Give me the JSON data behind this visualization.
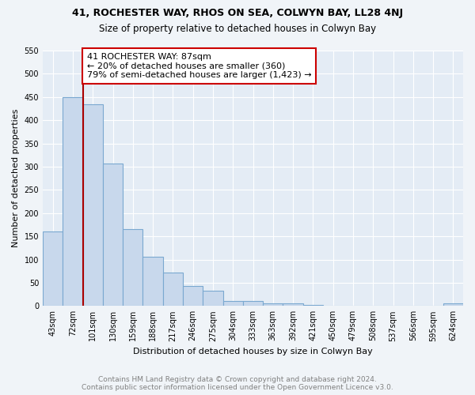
{
  "title1": "41, ROCHESTER WAY, RHOS ON SEA, COLWYN BAY, LL28 4NJ",
  "title2": "Size of property relative to detached houses in Colwyn Bay",
  "xlabel": "Distribution of detached houses by size in Colwyn Bay",
  "ylabel": "Number of detached properties",
  "categories": [
    "43sqm",
    "72sqm",
    "101sqm",
    "130sqm",
    "159sqm",
    "188sqm",
    "217sqm",
    "246sqm",
    "275sqm",
    "304sqm",
    "333sqm",
    "363sqm",
    "392sqm",
    "421sqm",
    "450sqm",
    "479sqm",
    "508sqm",
    "537sqm",
    "566sqm",
    "595sqm",
    "624sqm"
  ],
  "values": [
    160,
    450,
    435,
    307,
    165,
    106,
    72,
    43,
    33,
    10,
    10,
    5,
    5,
    3,
    0,
    0,
    0,
    0,
    0,
    0,
    5
  ],
  "bar_color": "#c8d8ec",
  "bar_edgecolor": "#7aa8d0",
  "annotation_text1": "41 ROCHESTER WAY: 87sqm",
  "annotation_text2": "← 20% of detached houses are smaller (360)",
  "annotation_text3": "79% of semi-detached houses are larger (1,423) →",
  "annotation_box_facecolor": "white",
  "annotation_box_edgecolor": "#cc0000",
  "vline_color": "#aa0000",
  "ylim": [
    0,
    550
  ],
  "yticks": [
    0,
    50,
    100,
    150,
    200,
    250,
    300,
    350,
    400,
    450,
    500,
    550
  ],
  "footer1": "Contains HM Land Registry data © Crown copyright and database right 2024.",
  "footer2": "Contains public sector information licensed under the Open Government Licence v3.0.",
  "bg_color": "#f0f4f8",
  "plot_bg_color": "#e4ecf5",
  "grid_color": "white",
  "title_fontsize": 9,
  "subtitle_fontsize": 8.5,
  "axis_label_fontsize": 8,
  "tick_fontsize": 7,
  "footer_fontsize": 6.5,
  "annotation_fontsize": 8
}
